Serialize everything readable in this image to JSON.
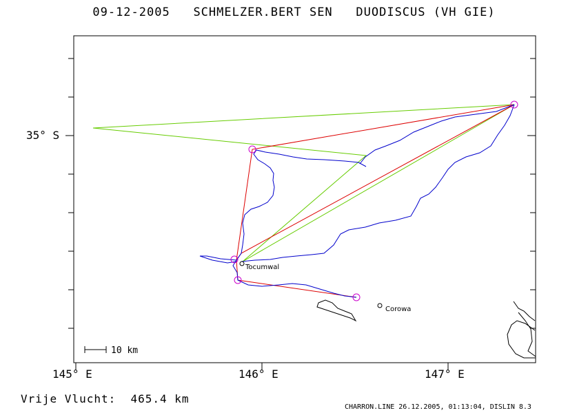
{
  "header": {
    "date": "09-12-2005",
    "pilot": "SCHMELZER.BERT SEN",
    "glider": "DUODISCUS (VH GIE)"
  },
  "axes": {
    "lon_labels": [
      "145° E",
      "146° E",
      "147° E"
    ],
    "lat_labels": [
      "35° S"
    ]
  },
  "places": [
    {
      "name": "Tocumwal"
    },
    {
      "name": "Corowa"
    }
  ],
  "scale": {
    "label": "10 km"
  },
  "footer": {
    "distance_label": "Vrije Vlucht:",
    "distance_value": "465.4 km",
    "credit": "CHARRON.LINE 26.12.2005, 01:13:04, DISLIN 8.3"
  },
  "colors": {
    "track": "#0000cc",
    "task_leg": "#dd0000",
    "optimised_leg": "#66cc00",
    "turnpoint": "#cc00cc",
    "terrain": "#000000"
  }
}
